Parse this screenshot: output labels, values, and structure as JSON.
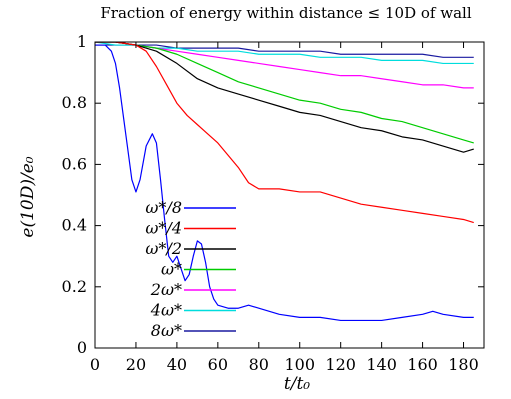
{
  "chart_data": {
    "type": "line",
    "title": "Fraction of energy within distance ≤ 10D of wall",
    "xlabel": "t/t₀",
    "ylabel": "e(10D)/e₀",
    "xlim": [
      0,
      190
    ],
    "ylim": [
      0,
      1
    ],
    "x_ticks": [
      "0",
      "20",
      "40",
      "60",
      "80",
      "100",
      "120",
      "140",
      "160",
      "180"
    ],
    "y_ticks": [
      "0",
      "0.2",
      "0.4",
      "0.6",
      "0.8",
      "1"
    ],
    "grid": false,
    "legend_position": "lower-left",
    "series": [
      {
        "name": "ω*/8",
        "color": "#0000ff",
        "x": [
          0,
          5,
          8,
          10,
          12,
          14,
          16,
          18,
          20,
          22,
          25,
          28,
          30,
          32,
          34,
          36,
          38,
          40,
          42,
          44,
          46,
          48,
          50,
          52,
          54,
          56,
          58,
          60,
          65,
          70,
          75,
          80,
          90,
          100,
          110,
          120,
          130,
          140,
          150,
          160,
          165,
          170,
          180,
          185
        ],
        "y": [
          0.99,
          0.99,
          0.97,
          0.93,
          0.85,
          0.75,
          0.65,
          0.55,
          0.51,
          0.55,
          0.66,
          0.7,
          0.67,
          0.55,
          0.42,
          0.3,
          0.28,
          0.3,
          0.26,
          0.22,
          0.24,
          0.3,
          0.35,
          0.34,
          0.28,
          0.2,
          0.16,
          0.14,
          0.13,
          0.13,
          0.14,
          0.13,
          0.11,
          0.1,
          0.1,
          0.09,
          0.09,
          0.09,
          0.1,
          0.11,
          0.12,
          0.11,
          0.1,
          0.1
        ]
      },
      {
        "name": "ω*/4",
        "color": "#ff0000",
        "x": [
          0,
          10,
          20,
          25,
          30,
          35,
          40,
          45,
          50,
          55,
          60,
          65,
          70,
          75,
          80,
          90,
          100,
          110,
          120,
          130,
          140,
          150,
          160,
          170,
          180,
          185
        ],
        "y": [
          1.0,
          1.0,
          0.99,
          0.97,
          0.92,
          0.86,
          0.8,
          0.76,
          0.73,
          0.7,
          0.67,
          0.63,
          0.59,
          0.54,
          0.52,
          0.52,
          0.51,
          0.51,
          0.49,
          0.47,
          0.46,
          0.45,
          0.44,
          0.43,
          0.42,
          0.41
        ]
      },
      {
        "name": "ω*/2",
        "color": "#000000",
        "x": [
          0,
          10,
          20,
          30,
          40,
          50,
          60,
          70,
          80,
          90,
          100,
          110,
          120,
          130,
          140,
          150,
          160,
          170,
          180,
          185
        ],
        "y": [
          1.0,
          1.0,
          0.99,
          0.97,
          0.93,
          0.88,
          0.85,
          0.83,
          0.81,
          0.79,
          0.77,
          0.76,
          0.74,
          0.72,
          0.71,
          0.69,
          0.68,
          0.66,
          0.64,
          0.65
        ]
      },
      {
        "name": "ω*",
        "color": "#00cc00",
        "x": [
          0,
          10,
          20,
          30,
          40,
          50,
          60,
          70,
          80,
          90,
          100,
          110,
          120,
          130,
          140,
          150,
          160,
          170,
          180,
          185
        ],
        "y": [
          1.0,
          1.0,
          0.99,
          0.98,
          0.96,
          0.93,
          0.9,
          0.87,
          0.85,
          0.83,
          0.81,
          0.8,
          0.78,
          0.77,
          0.75,
          0.74,
          0.72,
          0.7,
          0.68,
          0.67
        ]
      },
      {
        "name": "2ω*",
        "color": "#ff00ff",
        "x": [
          0,
          10,
          20,
          30,
          40,
          50,
          60,
          70,
          80,
          90,
          100,
          110,
          120,
          130,
          140,
          150,
          160,
          170,
          180,
          185
        ],
        "y": [
          1.0,
          1.0,
          0.99,
          0.98,
          0.97,
          0.96,
          0.95,
          0.94,
          0.93,
          0.92,
          0.91,
          0.9,
          0.89,
          0.89,
          0.88,
          0.87,
          0.86,
          0.86,
          0.85,
          0.85
        ]
      },
      {
        "name": "4ω*",
        "color": "#00dddd",
        "x": [
          0,
          10,
          20,
          30,
          40,
          50,
          60,
          70,
          80,
          90,
          100,
          110,
          120,
          130,
          140,
          150,
          160,
          170,
          180,
          185
        ],
        "y": [
          1.0,
          0.99,
          0.99,
          0.98,
          0.98,
          0.97,
          0.97,
          0.97,
          0.96,
          0.96,
          0.96,
          0.95,
          0.95,
          0.95,
          0.94,
          0.94,
          0.94,
          0.93,
          0.93,
          0.93
        ]
      },
      {
        "name": "8ω*",
        "color": "#1a1aa0",
        "x": [
          0,
          10,
          20,
          30,
          40,
          50,
          60,
          70,
          80,
          90,
          100,
          110,
          120,
          130,
          140,
          150,
          160,
          170,
          180,
          185
        ],
        "y": [
          0.99,
          0.99,
          0.99,
          0.99,
          0.98,
          0.98,
          0.98,
          0.98,
          0.97,
          0.97,
          0.97,
          0.97,
          0.96,
          0.96,
          0.96,
          0.96,
          0.96,
          0.95,
          0.95,
          0.95
        ]
      }
    ]
  }
}
